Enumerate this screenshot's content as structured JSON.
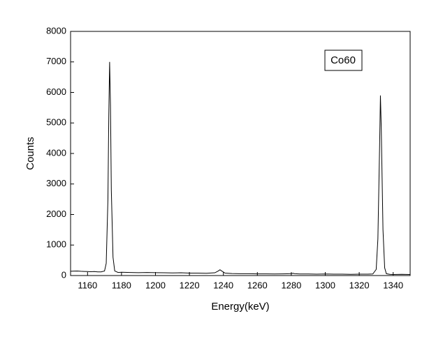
{
  "chart_data": {
    "type": "line",
    "xlabel": "Energy(keV)",
    "ylabel": "Counts",
    "annotation": "Co60",
    "x": [
      1150,
      1152,
      1154,
      1156,
      1158,
      1160,
      1162,
      1164,
      1166,
      1168,
      1170,
      1171,
      1172,
      1172.5,
      1173,
      1173.5,
      1174,
      1175,
      1176,
      1178,
      1180,
      1185,
      1190,
      1195,
      1200,
      1205,
      1210,
      1215,
      1220,
      1225,
      1230,
      1235,
      1237,
      1238,
      1239,
      1241,
      1245,
      1250,
      1255,
      1260,
      1265,
      1270,
      1275,
      1280,
      1281,
      1282,
      1285,
      1290,
      1295,
      1300,
      1305,
      1310,
      1315,
      1320,
      1325,
      1328,
      1330,
      1331,
      1332,
      1332.5,
      1333,
      1334,
      1335,
      1336,
      1338,
      1340,
      1345,
      1350
    ],
    "series": [
      {
        "color": "#000000",
        "values": [
          140,
          145,
          150,
          140,
          135,
          130,
          125,
          130,
          120,
          120,
          150,
          400,
          2500,
          5200,
          7000,
          5600,
          2800,
          600,
          150,
          100,
          110,
          100,
          95,
          100,
          95,
          90,
          85,
          90,
          80,
          80,
          75,
          90,
          150,
          190,
          150,
          80,
          65,
          60,
          60,
          55,
          55,
          50,
          55,
          60,
          75,
          60,
          50,
          50,
          45,
          50,
          45,
          45,
          40,
          45,
          45,
          50,
          200,
          1200,
          4200,
          5900,
          4800,
          1500,
          250,
          60,
          40,
          35,
          40,
          35
        ]
      }
    ],
    "xlim": [
      1150,
      1350
    ],
    "xticks": [
      1160,
      1180,
      1200,
      1220,
      1240,
      1260,
      1280,
      1300,
      1320,
      1340
    ],
    "ylim": [
      0,
      8000
    ],
    "yticks": [
      0,
      1000,
      2000,
      3000,
      4000,
      5000,
      6000,
      7000,
      8000
    ]
  }
}
